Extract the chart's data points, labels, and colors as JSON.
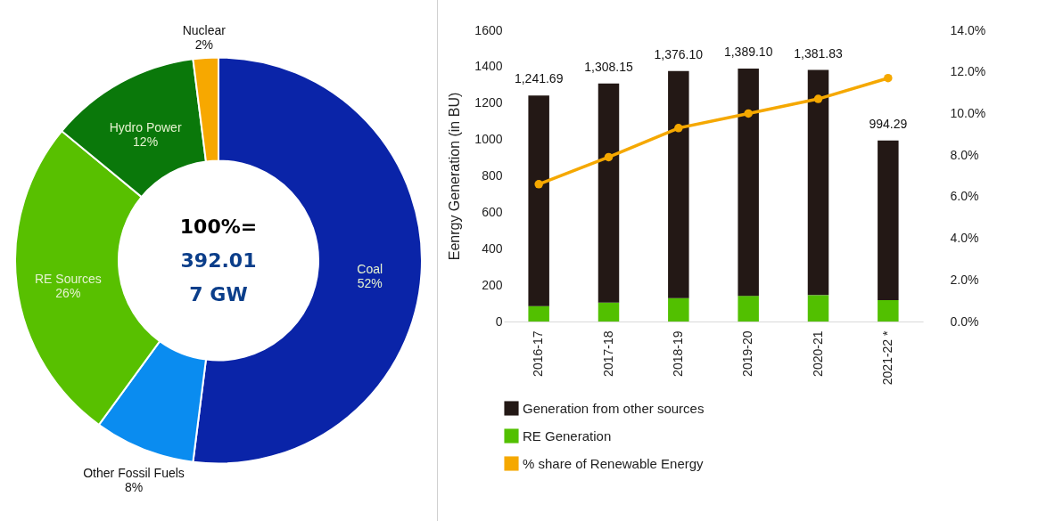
{
  "chart_data": [
    {
      "type": "donut",
      "categories": [
        "Coal",
        "Other Fossil Fuels",
        "RE Sources",
        "Hydro Power",
        "Nuclear"
      ],
      "values": [
        52,
        8,
        26,
        12,
        2
      ],
      "colors": [
        "#0a24a8",
        "#0a8cf0",
        "#58c000",
        "#0a780a",
        "#f7a800"
      ],
      "value_labels": [
        "52%",
        "8%",
        "26%",
        "12%",
        "2%"
      ],
      "annotations": [
        "100%=",
        "392.01",
        "7 GW"
      ]
    },
    {
      "type": "bar",
      "stacked": true,
      "categories": [
        "2016-17",
        "2017-18",
        "2018-19",
        "2019-20",
        "2020-21",
        "2021-22 *"
      ],
      "series": [
        {
          "name": "RE Generation",
          "color": "#52c000",
          "values": [
            85,
            104,
            129,
            141,
            145,
            118
          ]
        },
        {
          "name": "Generation from other sources",
          "color": "#231815",
          "values": [
            1156.69,
            1204.15,
            1247.1,
            1248.1,
            1236.83,
            876.29
          ]
        },
        {
          "name": "% share of Renewable Energy",
          "type": "line",
          "axis": "y2",
          "color": "#f5a800",
          "values": [
            6.6,
            7.9,
            9.3,
            10.0,
            10.7,
            11.7
          ]
        }
      ],
      "totals": [
        "1,241.69",
        "1,308.15",
        "1,376.10",
        "1,389.10",
        "1,381.83",
        "994.29"
      ],
      "ylabel": "Eenrgy Generation (in BU)",
      "ylim": [
        0,
        1600
      ],
      "yticks": [
        0,
        200,
        400,
        600,
        800,
        1000,
        1200,
        1400,
        1600
      ],
      "y2lim": [
        0,
        14
      ],
      "y2ticks": [
        {
          "value": 0,
          "label": "0.0%"
        },
        {
          "value": 2,
          "label": "2.0%"
        },
        {
          "value": 4,
          "label": "4.0%"
        },
        {
          "value": 6,
          "label": "6.0%"
        },
        {
          "value": 8,
          "label": "8.0%"
        },
        {
          "value": 10,
          "label": "10.0%"
        },
        {
          "value": 12,
          "label": "12.0%"
        },
        {
          "value": 14,
          "label": "14.0%"
        }
      ],
      "legend": "bottom",
      "marker": "circle",
      "grid": false
    }
  ]
}
